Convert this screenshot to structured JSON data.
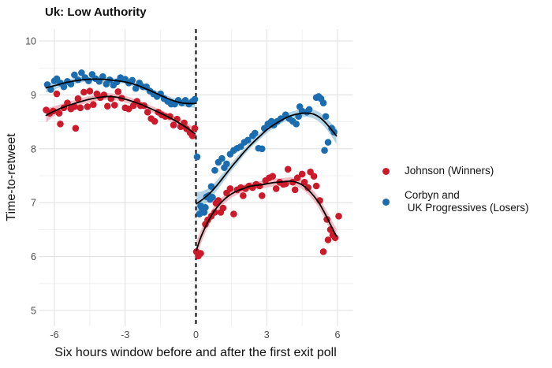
{
  "title": "Uk: Low Authority",
  "legend": {
    "items": [
      {
        "id": "johnson",
        "label_lines": [
          "Johnson (Winners)"
        ],
        "color": "#cd1a2b"
      },
      {
        "id": "corbyn",
        "label_lines": [
          "Corbyn and",
          " UK Progressives (Losers)"
        ],
        "color": "#1c6db0"
      }
    ]
  },
  "chart_data": {
    "type": "scatter",
    "title": "Uk: Low Authority",
    "xlabel": "Six hours window before and after the first exit poll",
    "ylabel": "Time-to-retweet",
    "xlim": [
      -6.65,
      6.65
    ],
    "ylim": [
      4.71,
      10.22
    ],
    "xticks": [
      -6,
      -3,
      0,
      3,
      6
    ],
    "yticks": [
      5,
      6,
      7,
      8,
      9,
      10
    ],
    "grid": true,
    "legend_position": "right",
    "vline": {
      "x": 0,
      "style": "dashed",
      "color": "#000000"
    },
    "trend_line_color": "#000000",
    "series": [
      {
        "name": "Johnson (Winners)",
        "color": "#cd1a2b",
        "band_color": "#f2b4be",
        "points": [
          [
            -6.35,
            8.72
          ],
          [
            -6.2,
            8.66
          ],
          [
            -6.05,
            8.7
          ],
          [
            -5.9,
            9.02
          ],
          [
            -5.8,
            8.66
          ],
          [
            -5.75,
            8.46
          ],
          [
            -5.6,
            8.76
          ],
          [
            -5.45,
            8.85
          ],
          [
            -5.3,
            8.74
          ],
          [
            -5.15,
            8.78
          ],
          [
            -5.1,
            8.38
          ],
          [
            -5.0,
            8.93
          ],
          [
            -4.9,
            8.76
          ],
          [
            -4.75,
            9.05
          ],
          [
            -4.6,
            8.78
          ],
          [
            -4.5,
            9.07
          ],
          [
            -4.35,
            8.82
          ],
          [
            -4.2,
            9.02
          ],
          [
            -4.05,
            8.95
          ],
          [
            -3.9,
            9.0
          ],
          [
            -3.75,
            8.79
          ],
          [
            -3.6,
            8.93
          ],
          [
            -3.45,
            8.81
          ],
          [
            -3.3,
            9.06
          ],
          [
            -3.15,
            8.94
          ],
          [
            -3.0,
            8.76
          ],
          [
            -2.85,
            8.74
          ],
          [
            -2.65,
            8.8
          ],
          [
            -2.5,
            8.88
          ],
          [
            -2.35,
            8.8
          ],
          [
            -2.2,
            8.8
          ],
          [
            -2.05,
            8.68
          ],
          [
            -1.9,
            8.56
          ],
          [
            -1.75,
            8.51
          ],
          [
            -1.6,
            8.68
          ],
          [
            -1.45,
            8.63
          ],
          [
            -1.3,
            8.6
          ],
          [
            -1.1,
            8.6
          ],
          [
            -0.95,
            8.44
          ],
          [
            -0.8,
            8.55
          ],
          [
            -0.65,
            8.41
          ],
          [
            -0.5,
            8.48
          ],
          [
            -0.4,
            8.37
          ],
          [
            -0.25,
            8.3
          ],
          [
            -0.15,
            8.24
          ],
          [
            -0.05,
            8.38
          ],
          [
            0.02,
            6.09
          ],
          [
            0.1,
            6.01
          ],
          [
            0.2,
            6.06
          ],
          [
            0.4,
            6.6
          ],
          [
            0.5,
            6.68
          ],
          [
            0.65,
            6.75
          ],
          [
            0.8,
            6.82
          ],
          [
            0.85,
            6.99
          ],
          [
            0.95,
            7.04
          ],
          [
            1.05,
            6.82
          ],
          [
            1.15,
            6.9
          ],
          [
            1.3,
            7.18
          ],
          [
            1.45,
            7.26
          ],
          [
            1.6,
            6.79
          ],
          [
            1.75,
            7.24
          ],
          [
            1.9,
            7.28
          ],
          [
            2.0,
            7.13
          ],
          [
            2.1,
            7.26
          ],
          [
            2.25,
            7.31
          ],
          [
            2.4,
            7.28
          ],
          [
            2.55,
            7.34
          ],
          [
            2.7,
            7.31
          ],
          [
            2.8,
            7.13
          ],
          [
            2.95,
            7.41
          ],
          [
            3.1,
            7.46
          ],
          [
            3.25,
            7.49
          ],
          [
            3.4,
            7.26
          ],
          [
            3.55,
            7.38
          ],
          [
            3.7,
            7.34
          ],
          [
            3.8,
            7.35
          ],
          [
            3.9,
            7.62
          ],
          [
            4.1,
            7.38
          ],
          [
            4.2,
            7.24
          ],
          [
            4.3,
            7.46
          ],
          [
            4.5,
            7.53
          ],
          [
            4.6,
            7.38
          ],
          [
            4.75,
            7.28
          ],
          [
            4.85,
            7.57
          ],
          [
            5.0,
            7.49
          ],
          [
            5.1,
            7.31
          ],
          [
            5.25,
            7.04
          ],
          [
            5.4,
            6.09
          ],
          [
            5.55,
            6.69
          ],
          [
            5.6,
            6.31
          ],
          [
            5.7,
            6.5
          ],
          [
            5.8,
            6.4
          ],
          [
            5.9,
            6.35
          ],
          [
            6.05,
            6.75
          ]
        ],
        "smooth": [
          {
            "x": [
              -6.35,
              -6,
              -5.5,
              -5,
              -4.5,
              -4,
              -3.7,
              -3.4,
              -3,
              -2.5,
              -2,
              -1.5,
              -1,
              -0.5,
              -0.2,
              -0.05
            ],
            "y": [
              8.62,
              8.7,
              8.79,
              8.86,
              8.92,
              8.96,
              8.97,
              8.96,
              8.92,
              8.85,
              8.76,
              8.66,
              8.55,
              8.42,
              8.33,
              8.28
            ],
            "hw": [
              0.13,
              0.09,
              0.07,
              0.06,
              0.06,
              0.06,
              0.06,
              0.06,
              0.06,
              0.06,
              0.06,
              0.06,
              0.07,
              0.08,
              0.1,
              0.12
            ]
          },
          {
            "x": [
              0.02,
              0.2,
              0.4,
              0.6,
              0.8,
              1.0,
              1.25,
              1.5,
              1.75,
              2,
              2.25,
              2.5,
              2.75,
              3,
              3.25,
              3.5,
              3.75,
              4,
              4.25,
              4.5,
              4.75,
              5,
              5.25,
              5.5,
              5.75,
              5.95
            ],
            "y": [
              6.12,
              6.35,
              6.55,
              6.72,
              6.86,
              6.97,
              7.08,
              7.16,
              7.22,
              7.26,
              7.3,
              7.32,
              7.33,
              7.35,
              7.37,
              7.38,
              7.39,
              7.4,
              7.38,
              7.33,
              7.24,
              7.12,
              6.97,
              6.77,
              6.55,
              6.38
            ],
            "hw": [
              0.17,
              0.13,
              0.11,
              0.1,
              0.09,
              0.08,
              0.08,
              0.07,
              0.07,
              0.07,
              0.07,
              0.07,
              0.07,
              0.07,
              0.07,
              0.07,
              0.07,
              0.07,
              0.07,
              0.08,
              0.08,
              0.09,
              0.1,
              0.11,
              0.12,
              0.14
            ]
          }
        ]
      },
      {
        "name": "Corbyn and\n UK Progressives (Losers)",
        "color": "#1c6db0",
        "band_color": "#a8cce2",
        "points": [
          [
            -6.3,
            9.19
          ],
          [
            -6.15,
            9.1
          ],
          [
            -6.0,
            9.26
          ],
          [
            -5.9,
            9.3
          ],
          [
            -5.75,
            9.22
          ],
          [
            -5.6,
            9.15
          ],
          [
            -5.45,
            9.25
          ],
          [
            -5.3,
            9.2
          ],
          [
            -5.15,
            9.37
          ],
          [
            -5.0,
            9.28
          ],
          [
            -4.85,
            9.41
          ],
          [
            -4.7,
            9.32
          ],
          [
            -4.55,
            9.26
          ],
          [
            -4.4,
            9.38
          ],
          [
            -4.25,
            9.3
          ],
          [
            -4.1,
            9.25
          ],
          [
            -3.95,
            9.34
          ],
          [
            -3.8,
            9.2
          ],
          [
            -3.65,
            9.28
          ],
          [
            -3.5,
            9.18
          ],
          [
            -3.35,
            9.24
          ],
          [
            -3.2,
            9.32
          ],
          [
            -3.0,
            9.29
          ],
          [
            -2.85,
            9.22
          ],
          [
            -2.7,
            9.27
          ],
          [
            -2.55,
            9.12
          ],
          [
            -2.4,
            9.22
          ],
          [
            -2.25,
            9.15
          ],
          [
            -2.1,
            9.15
          ],
          [
            -1.95,
            9.07
          ],
          [
            -1.8,
            9.02
          ],
          [
            -1.65,
            8.97
          ],
          [
            -1.5,
            9.02
          ],
          [
            -1.35,
            8.93
          ],
          [
            -1.2,
            8.88
          ],
          [
            -1.05,
            8.83
          ],
          [
            -0.9,
            8.83
          ],
          [
            -0.75,
            8.9
          ],
          [
            -0.6,
            8.85
          ],
          [
            -0.45,
            8.9
          ],
          [
            -0.3,
            8.83
          ],
          [
            -0.15,
            8.88
          ],
          [
            -0.05,
            8.92
          ],
          [
            0.05,
            7.85
          ],
          [
            0.15,
            6.79
          ],
          [
            0.2,
            6.94
          ],
          [
            0.25,
            6.9
          ],
          [
            0.35,
            6.82
          ],
          [
            0.4,
            6.91
          ],
          [
            0.45,
            7.11
          ],
          [
            0.55,
            7.13
          ],
          [
            0.6,
            7.06
          ],
          [
            0.65,
            7.3
          ],
          [
            0.7,
            7.1
          ],
          [
            0.8,
            7.6
          ],
          [
            0.95,
            7.75
          ],
          [
            1.1,
            7.82
          ],
          [
            1.2,
            7.65
          ],
          [
            1.3,
            7.72
          ],
          [
            1.45,
            7.9
          ],
          [
            1.6,
            7.97
          ],
          [
            1.75,
            8.01
          ],
          [
            1.9,
            8.04
          ],
          [
            2.05,
            8.12
          ],
          [
            2.2,
            8.16
          ],
          [
            2.4,
            8.24
          ],
          [
            2.5,
            8.29
          ],
          [
            2.65,
            8.01
          ],
          [
            2.8,
            8.0
          ],
          [
            2.9,
            8.38
          ],
          [
            3.05,
            8.46
          ],
          [
            3.2,
            8.51
          ],
          [
            3.3,
            8.44
          ],
          [
            3.45,
            8.51
          ],
          [
            3.6,
            8.56
          ],
          [
            3.8,
            8.63
          ],
          [
            3.95,
            8.56
          ],
          [
            4.1,
            8.51
          ],
          [
            4.25,
            8.46
          ],
          [
            4.35,
            8.6
          ],
          [
            4.4,
            8.78
          ],
          [
            4.5,
            8.7
          ],
          [
            4.7,
            8.68
          ],
          [
            4.8,
            8.73
          ],
          [
            5.1,
            8.95
          ],
          [
            5.2,
            8.97
          ],
          [
            5.3,
            8.93
          ],
          [
            5.4,
            8.85
          ],
          [
            5.45,
            7.97
          ],
          [
            5.5,
            8.6
          ],
          [
            5.6,
            8.12
          ],
          [
            5.75,
            8.38
          ],
          [
            5.85,
            8.31
          ]
        ],
        "smooth": [
          {
            "x": [
              -6.35,
              -6,
              -5.5,
              -5,
              -4.5,
              -4,
              -3.5,
              -3,
              -2.5,
              -2,
              -1.5,
              -1,
              -0.6,
              -0.3,
              -0.05
            ],
            "y": [
              9.13,
              9.17,
              9.23,
              9.27,
              9.29,
              9.29,
              9.27,
              9.24,
              9.18,
              9.09,
              8.99,
              8.9,
              8.85,
              8.84,
              8.84
            ],
            "hw": [
              0.09,
              0.07,
              0.05,
              0.05,
              0.04,
              0.04,
              0.04,
              0.04,
              0.04,
              0.05,
              0.05,
              0.05,
              0.06,
              0.07,
              0.08
            ]
          },
          {
            "x": [
              0.02,
              0.25,
              0.5,
              0.75,
              1,
              1.25,
              1.5,
              1.75,
              2,
              2.25,
              2.5,
              2.75,
              3,
              3.25,
              3.5,
              3.75,
              4,
              4.25,
              4.5,
              4.75,
              5,
              5.25,
              5.5,
              5.75,
              5.95
            ],
            "y": [
              6.98,
              7.05,
              7.14,
              7.25,
              7.38,
              7.52,
              7.66,
              7.79,
              7.92,
              8.04,
              8.15,
              8.25,
              8.35,
              8.43,
              8.5,
              8.56,
              8.61,
              8.64,
              8.66,
              8.66,
              8.64,
              8.58,
              8.48,
              8.35,
              8.24
            ],
            "hw": [
              0.22,
              0.16,
              0.12,
              0.1,
              0.09,
              0.08,
              0.07,
              0.07,
              0.06,
              0.06,
              0.06,
              0.06,
              0.06,
              0.06,
              0.06,
              0.06,
              0.07,
              0.07,
              0.07,
              0.07,
              0.08,
              0.09,
              0.1,
              0.12,
              0.15
            ]
          }
        ]
      }
    ]
  }
}
